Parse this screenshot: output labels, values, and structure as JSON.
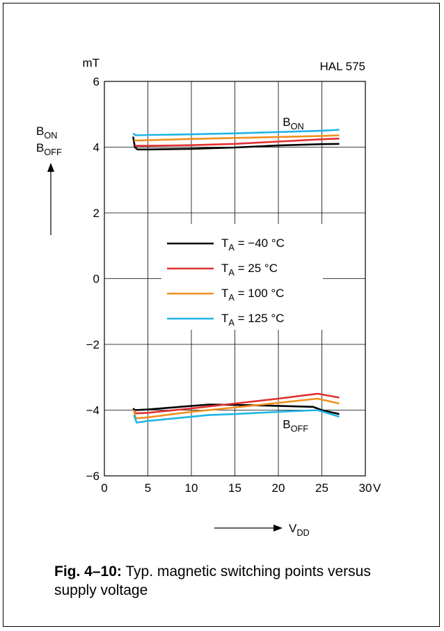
{
  "chart_data": {
    "type": "line",
    "title": "HAL 575",
    "xlabel": "V",
    "xlabel_sub": "DD",
    "x_unit": "V",
    "ylabel_lines": [
      {
        "text": "B",
        "sub": "ON"
      },
      {
        "text": "B",
        "sub": "OFF"
      }
    ],
    "y_unit": "mT",
    "xlim": [
      0,
      30
    ],
    "ylim": [
      -6,
      6
    ],
    "x_ticks": [
      0,
      5,
      10,
      15,
      20,
      25,
      30
    ],
    "x_tick_labels": [
      "0",
      "5",
      "10",
      "15",
      "20",
      "25",
      "30"
    ],
    "y_ticks": [
      -6,
      -4,
      -2,
      0,
      2,
      4,
      6
    ],
    "y_tick_labels": [
      "−6",
      "−4",
      "−2",
      "0",
      "2",
      "4",
      "6"
    ],
    "grid": true,
    "legend_position": "center",
    "annotations": [
      {
        "text": "B",
        "sub": "ON",
        "x": 20.5,
        "y": 4.65
      },
      {
        "text": "B",
        "sub": "OFF",
        "x": 20.5,
        "y": -4.55
      }
    ],
    "series": [
      {
        "name": "T_A = −40 °C",
        "legend_label": "= −40 °C",
        "color": "#000000",
        "group": "B_ON",
        "points": [
          [
            3.3,
            4.32
          ],
          [
            3.5,
            4.0
          ],
          [
            3.8,
            3.93
          ],
          [
            5,
            3.93
          ],
          [
            10,
            3.95
          ],
          [
            15,
            3.99
          ],
          [
            20,
            4.05
          ],
          [
            25,
            4.09
          ],
          [
            27,
            4.1
          ]
        ]
      },
      {
        "name": "T_A = 25 °C",
        "legend_label": "= 25 °C",
        "color": "#e03030",
        "group": "B_ON",
        "points": [
          [
            3.5,
            4.04
          ],
          [
            5,
            4.04
          ],
          [
            10,
            4.06
          ],
          [
            15,
            4.1
          ],
          [
            20,
            4.17
          ],
          [
            25,
            4.24
          ],
          [
            27,
            4.26
          ]
        ]
      },
      {
        "name": "T_A = 100 °C",
        "legend_label": "= 100 °C",
        "color": "#f0901e",
        "group": "B_ON",
        "points": [
          [
            3.4,
            4.2
          ],
          [
            5,
            4.21
          ],
          [
            10,
            4.25
          ],
          [
            15,
            4.28
          ],
          [
            20,
            4.31
          ],
          [
            25,
            4.34
          ],
          [
            27,
            4.36
          ]
        ]
      },
      {
        "name": "T_A = 125 °C",
        "legend_label": "= 125 °C",
        "color": "#20b4e6",
        "group": "B_ON",
        "points": [
          [
            3.3,
            4.42
          ],
          [
            3.6,
            4.36
          ],
          [
            5,
            4.37
          ],
          [
            10,
            4.39
          ],
          [
            15,
            4.42
          ],
          [
            20,
            4.46
          ],
          [
            25,
            4.5
          ],
          [
            27,
            4.53
          ]
        ]
      },
      {
        "name": "T_A = −40 °C",
        "legend_label": "= −40 °C",
        "color": "#000000",
        "group": "B_OFF",
        "points": [
          [
            3.3,
            -3.95
          ],
          [
            3.5,
            -4.0
          ],
          [
            5,
            -3.98
          ],
          [
            12,
            -3.83
          ],
          [
            15,
            -3.84
          ],
          [
            20,
            -3.87
          ],
          [
            24,
            -3.9
          ],
          [
            25,
            -4.0
          ],
          [
            27,
            -4.12
          ]
        ]
      },
      {
        "name": "T_A = 25 °C",
        "legend_label": "= 25 °C",
        "color": "#e03030",
        "group": "B_OFF",
        "points": [
          [
            3.4,
            -4.0
          ],
          [
            3.6,
            -4.1
          ],
          [
            5,
            -4.08
          ],
          [
            10,
            -3.95
          ],
          [
            15,
            -3.8
          ],
          [
            20,
            -3.65
          ],
          [
            24.5,
            -3.5
          ],
          [
            27,
            -3.62
          ]
        ]
      },
      {
        "name": "T_A = 100 °C",
        "legend_label": "= 100 °C",
        "color": "#f0901e",
        "group": "B_OFF",
        "points": [
          [
            3.4,
            -4.0
          ],
          [
            3.6,
            -4.25
          ],
          [
            5,
            -4.22
          ],
          [
            10,
            -4.05
          ],
          [
            15,
            -3.92
          ],
          [
            20,
            -3.78
          ],
          [
            24.5,
            -3.65
          ],
          [
            27,
            -3.8
          ]
        ]
      },
      {
        "name": "T_A = 125 °C",
        "legend_label": "= 125 °C",
        "color": "#20b4e6",
        "group": "B_OFF",
        "points": [
          [
            3.4,
            -4.15
          ],
          [
            3.7,
            -4.38
          ],
          [
            5,
            -4.33
          ],
          [
            12,
            -4.15
          ],
          [
            15,
            -4.12
          ],
          [
            20,
            -4.05
          ],
          [
            24.5,
            -4.0
          ],
          [
            27,
            -4.2
          ]
        ]
      }
    ],
    "legend": [
      {
        "label": "= −40 °C",
        "color": "#000000"
      },
      {
        "label": "= 25 °C",
        "color": "#e03030"
      },
      {
        "label": "= 100 °C",
        "color": "#f0901e"
      },
      {
        "label": "= 125 °C",
        "color": "#20b4e6"
      }
    ],
    "legend_prefix": "T",
    "legend_prefix_sub": "A"
  },
  "caption": {
    "label": "Fig. 4–10:",
    "text": "Typ. magnetic switching points versus supply voltage"
  }
}
